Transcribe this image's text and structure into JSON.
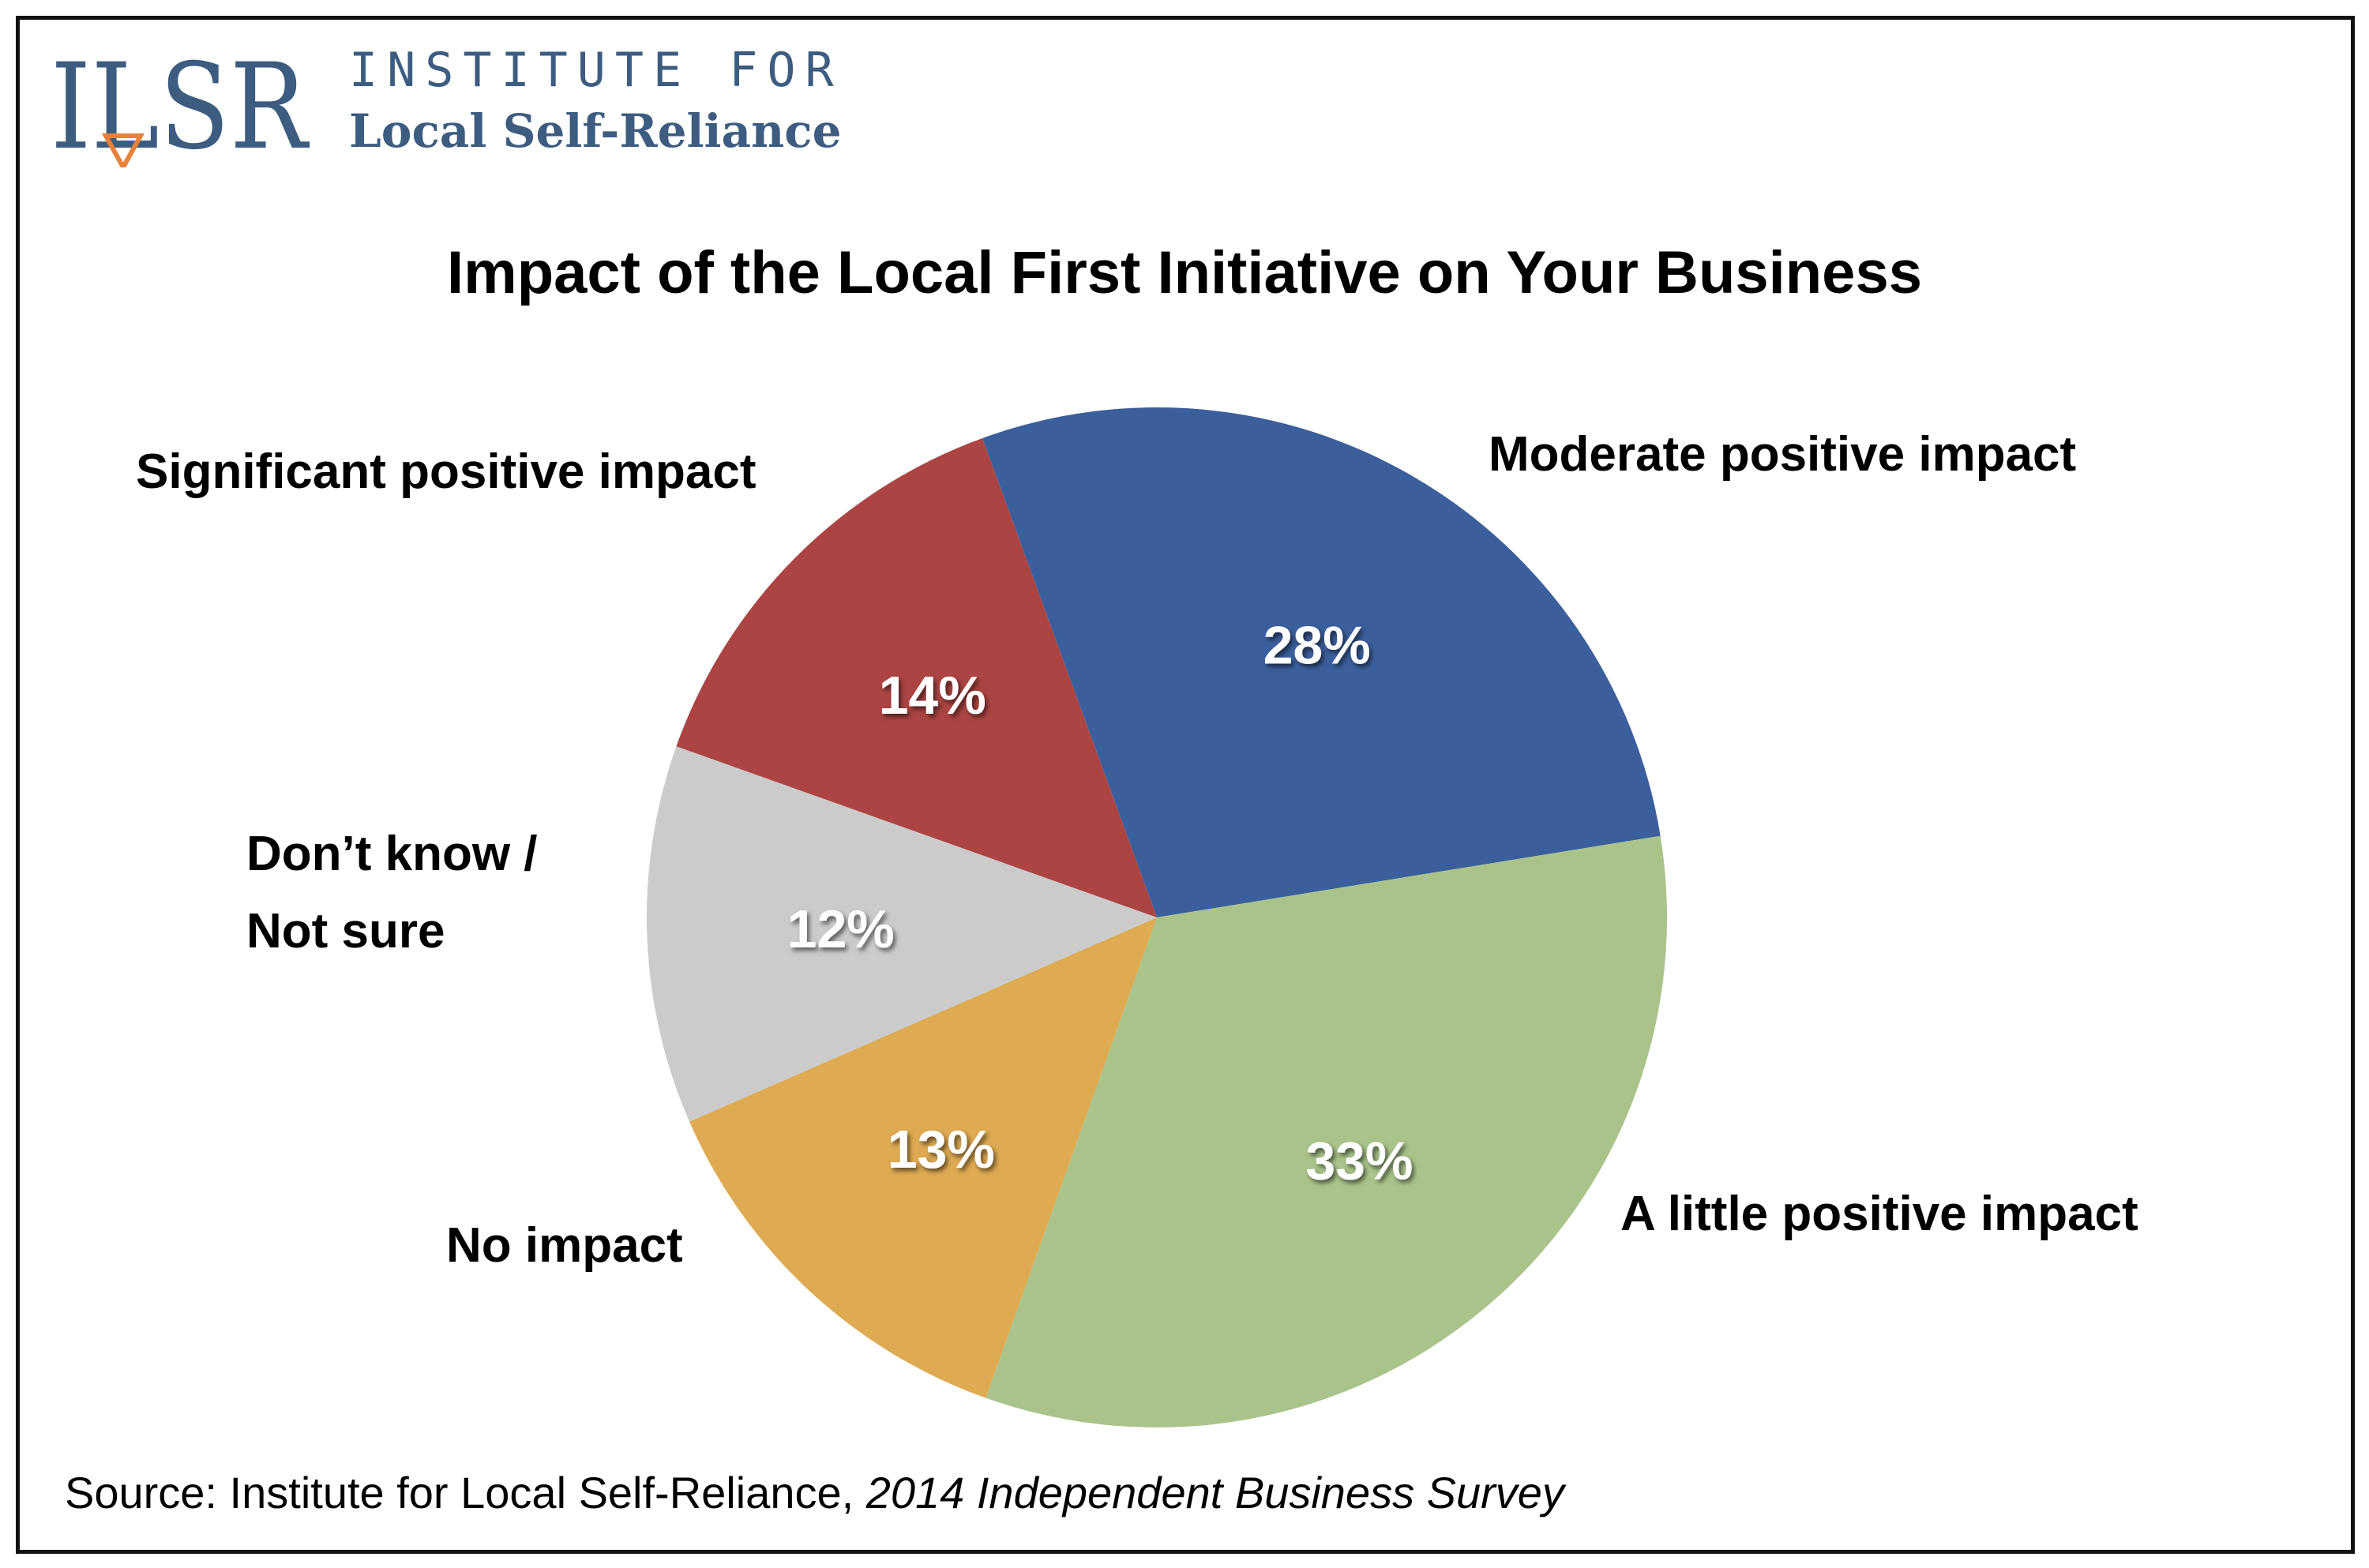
{
  "logo": {
    "mark": "ILSR",
    "line1": "INSTITUTE FOR",
    "line2": "Local Self-Reliance",
    "color": "#3c5c80",
    "accent_color": "#e8813a",
    "icon": "downward-triangle-icon"
  },
  "source": {
    "prefix": "Source: Institute for Local Self-Reliance, ",
    "title": "2014 Independent Business Survey"
  },
  "chart_data": {
    "type": "pie",
    "title": "Impact of the Local First Initiative on Your Business",
    "start_angle_deg": 340,
    "direction": "clockwise",
    "legend": "none (slices labeled directly)",
    "slices": [
      {
        "label": "Moderate positive impact",
        "value": 28,
        "display": "28%",
        "color": "#3b5f9c"
      },
      {
        "label": "A little positive impact",
        "value": 33,
        "display": "33%",
        "color": "#aac38a"
      },
      {
        "label": "No impact",
        "value": 13,
        "display": "13%",
        "color": "#deaa52"
      },
      {
        "label": "Don’t know / Not sure",
        "lines": [
          "Don’t know /",
          "Not sure"
        ],
        "value": 12,
        "display": "12%",
        "color": "#cbcbcb"
      },
      {
        "label": "Significant positive impact",
        "value": 14,
        "display": "14%",
        "color": "#ab4442"
      }
    ]
  }
}
